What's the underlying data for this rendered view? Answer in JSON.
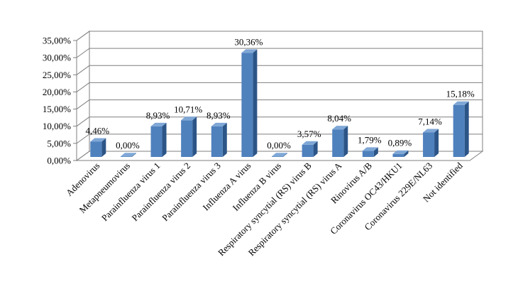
{
  "chart_data": {
    "type": "bar",
    "style": "3d-column",
    "bar_color": "#4F81BD",
    "grid": true,
    "legend": "none",
    "ylim": [
      0,
      35
    ],
    "yticks": [
      0,
      5,
      10,
      15,
      20,
      25,
      30,
      35
    ],
    "ytick_labels": [
      "0,00%",
      "5,00%",
      "10,00%",
      "15,00%",
      "20,00%",
      "25,00%",
      "30,00%",
      "35,00%"
    ],
    "categories": [
      "Adenovirus",
      "Metapneumovirus",
      "Parainfluenza virus 1",
      "Parainfluenza virus 2",
      "Parainfluenza virus 3",
      "Influenza A virus",
      "Influenza B virus",
      "Respiratory syncytial (RS) virus B",
      "Respiratory syncytial (RS) virus A",
      "Rinovirus A/B",
      "Coronavirus OC43/HKU1",
      "Coronavirus 229E/NL63",
      "Not identified"
    ],
    "values": [
      4.46,
      0.0,
      8.93,
      10.71,
      8.93,
      30.36,
      0.0,
      3.57,
      8.04,
      1.79,
      0.89,
      7.14,
      15.18
    ],
    "data_labels": [
      "4,46%",
      "0,00%",
      "8,93%",
      "10,71%",
      "8,93%",
      "30,36%",
      "0,00%",
      "3,57%",
      "8,04%",
      "1,79%",
      "0,89%",
      "7,14%",
      "15,18%"
    ]
  }
}
